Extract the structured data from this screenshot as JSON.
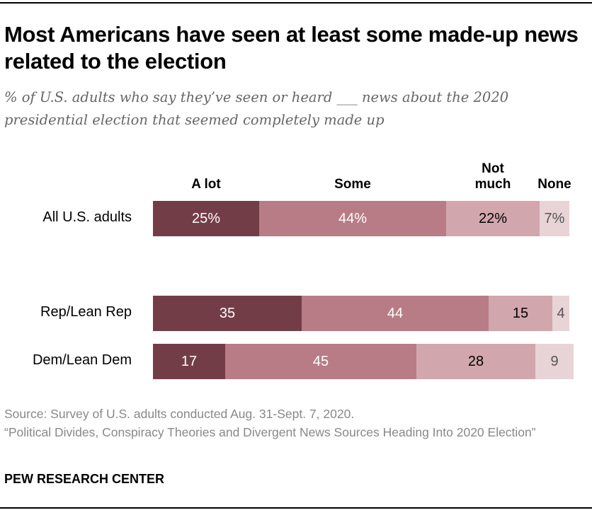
{
  "title": "Most Americans have seen at least some made-up news related to the election",
  "subtitle": "% of U.S. adults who say they’ve seen or heard ___ news about the 2020 presidential election that seemed completely made up",
  "chart_data": {
    "type": "bar",
    "orientation": "horizontal-stacked",
    "categories": [
      "All U.S. adults",
      "Rep/Lean Rep",
      "Dem/Lean Dem"
    ],
    "series": [
      {
        "name": "A lot",
        "values": [
          25,
          35,
          17
        ],
        "labels": [
          "25%",
          "35",
          "17"
        ],
        "color": "#733d47",
        "text_color": "#ffffff"
      },
      {
        "name": "Some",
        "values": [
          44,
          44,
          45
        ],
        "labels": [
          "44%",
          "44",
          "45"
        ],
        "color": "#b87c86",
        "text_color": "#ffffff"
      },
      {
        "name": "Not much",
        "values": [
          22,
          15,
          28
        ],
        "labels": [
          "22%",
          "15",
          "28"
        ],
        "color": "#d2a6ad",
        "text_color": "#000000"
      },
      {
        "name": "None",
        "values": [
          7,
          4,
          9
        ],
        "labels": [
          "7%",
          "4",
          "9"
        ],
        "color": "#e8d3d6",
        "text_color": "#555555"
      }
    ],
    "xlim": [
      0,
      100
    ],
    "grid": false
  },
  "footer": {
    "source": "Source: Survey of U.S. adults conducted Aug. 31-Sept. 7, 2020.",
    "report": "“Political Divides, Conspiracy Theories and Divergent News Sources Heading Into 2020 Election”",
    "brand": "PEW RESEARCH CENTER"
  }
}
